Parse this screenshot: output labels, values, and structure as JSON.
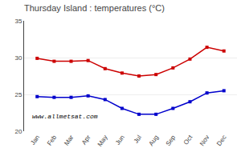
{
  "chart_data": {
    "type": "line",
    "title": "Thursday Island : temperatures (°C)",
    "categories": [
      "Jan",
      "Feb",
      "Mar",
      "Apr",
      "May",
      "Jun",
      "Jul",
      "Aug",
      "Sep",
      "Oct",
      "Nov",
      "Dec"
    ],
    "series": [
      {
        "color": "#cc0000",
        "values": [
          29.9,
          29.5,
          29.5,
          29.6,
          28.5,
          27.9,
          27.5,
          27.7,
          28.6,
          29.8,
          31.4,
          30.9
        ]
      },
      {
        "color": "#0000cc",
        "values": [
          24.7,
          24.6,
          24.6,
          24.8,
          24.3,
          23.1,
          22.3,
          22.3,
          23.1,
          24.0,
          25.2,
          25.5
        ]
      }
    ],
    "ylim": [
      20,
      35
    ],
    "yticks": [
      20,
      25,
      30,
      35
    ],
    "grid": true,
    "marker": "square",
    "line_style": "solid",
    "annotations": [
      "www.allmetsat.com"
    ]
  }
}
